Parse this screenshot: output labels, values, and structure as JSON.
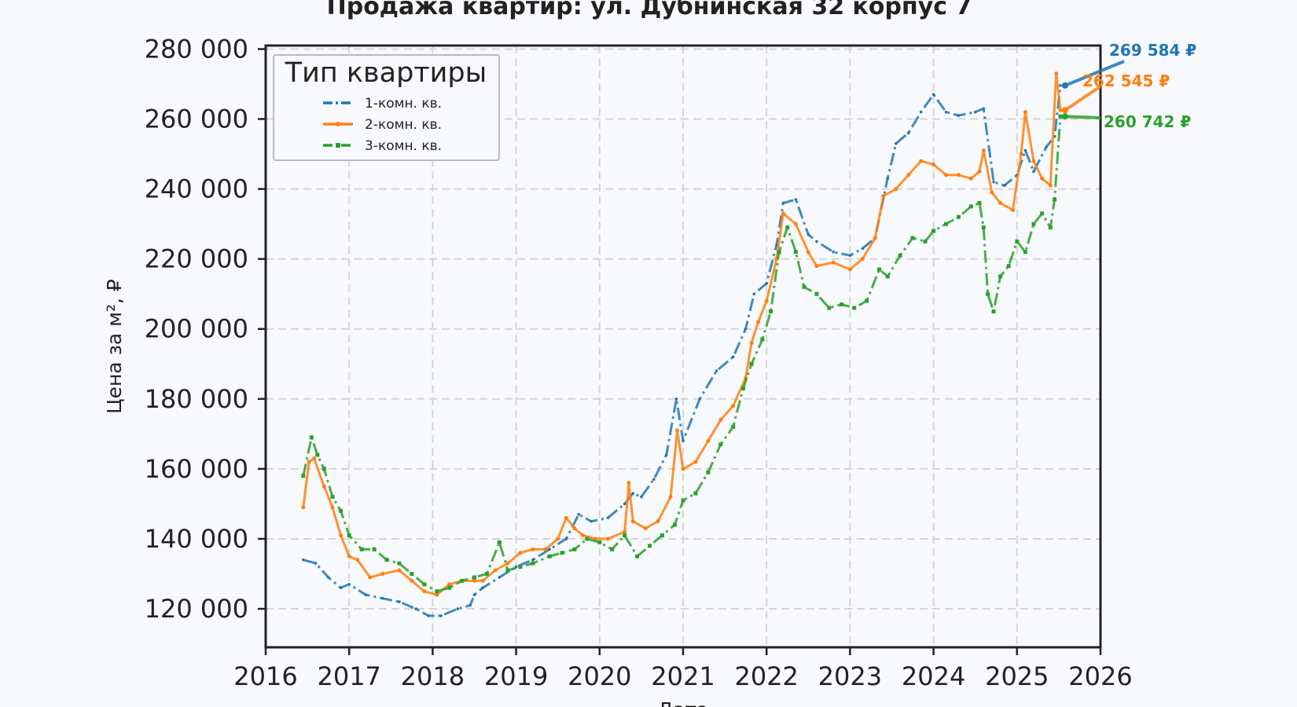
{
  "chart_data": {
    "type": "line",
    "title": "Продажа квартир: ул. Дубнинская 32 корпус 7",
    "xlabel": "Дата",
    "ylabel": "Цена за м², ₽",
    "xlim": [
      2016,
      2026
    ],
    "ylim": [
      109000,
      281000
    ],
    "x_ticks": [
      2016,
      2017,
      2018,
      2019,
      2020,
      2021,
      2022,
      2023,
      2024,
      2025,
      2026
    ],
    "y_ticks": [
      120000,
      140000,
      160000,
      180000,
      200000,
      220000,
      240000,
      260000,
      280000
    ],
    "y_tick_labels": [
      "120 000",
      "140 000",
      "160 000",
      "180 000",
      "200 000",
      "220 000",
      "240 000",
      "260 000",
      "280 000"
    ],
    "grid": true,
    "legend": {
      "title": "Тип квартиры",
      "position": "top-left"
    },
    "series": [
      {
        "name": "1-комн. кв.",
        "color": "#1f77b4",
        "style": "dashdot",
        "end_label": "269 584 ₽",
        "points": [
          [
            2016.45,
            134000
          ],
          [
            2016.6,
            133000
          ],
          [
            2016.75,
            129000
          ],
          [
            2016.9,
            126000
          ],
          [
            2017.0,
            127000
          ],
          [
            2017.2,
            124000
          ],
          [
            2017.4,
            123000
          ],
          [
            2017.6,
            122000
          ],
          [
            2017.8,
            120000
          ],
          [
            2017.95,
            118000
          ],
          [
            2018.1,
            118000
          ],
          [
            2018.3,
            120000
          ],
          [
            2018.45,
            121000
          ],
          [
            2018.5,
            124000
          ],
          [
            2018.6,
            126000
          ],
          [
            2018.8,
            129000
          ],
          [
            2019.0,
            132000
          ],
          [
            2019.2,
            134000
          ],
          [
            2019.4,
            137000
          ],
          [
            2019.6,
            140000
          ],
          [
            2019.75,
            147000
          ],
          [
            2019.9,
            145000
          ],
          [
            2020.1,
            146000
          ],
          [
            2020.3,
            150000
          ],
          [
            2020.4,
            153000
          ],
          [
            2020.5,
            152000
          ],
          [
            2020.65,
            157000
          ],
          [
            2020.8,
            164000
          ],
          [
            2020.92,
            180000
          ],
          [
            2021.0,
            168000
          ],
          [
            2021.2,
            180000
          ],
          [
            2021.4,
            188000
          ],
          [
            2021.6,
            192000
          ],
          [
            2021.75,
            200000
          ],
          [
            2021.85,
            210000
          ],
          [
            2022.0,
            213000
          ],
          [
            2022.12,
            224000
          ],
          [
            2022.2,
            236000
          ],
          [
            2022.35,
            237000
          ],
          [
            2022.5,
            227000
          ],
          [
            2022.6,
            225000
          ],
          [
            2022.8,
            222000
          ],
          [
            2023.0,
            221000
          ],
          [
            2023.15,
            223000
          ],
          [
            2023.3,
            226000
          ],
          [
            2023.45,
            243000
          ],
          [
            2023.55,
            253000
          ],
          [
            2023.7,
            256000
          ],
          [
            2023.85,
            262000
          ],
          [
            2024.0,
            267000
          ],
          [
            2024.15,
            262000
          ],
          [
            2024.3,
            261000
          ],
          [
            2024.5,
            262000
          ],
          [
            2024.6,
            263000
          ],
          [
            2024.72,
            242000
          ],
          [
            2024.85,
            241000
          ],
          [
            2025.0,
            244000
          ],
          [
            2025.1,
            251000
          ],
          [
            2025.2,
            245000
          ],
          [
            2025.35,
            252000
          ],
          [
            2025.45,
            255000
          ],
          [
            2025.52,
            269584
          ]
        ]
      },
      {
        "name": "2-комн. кв.",
        "color": "#ff7f0e",
        "style": "solid-dot",
        "end_label": "262 545 ₽",
        "points": [
          [
            2016.45,
            149000
          ],
          [
            2016.52,
            162000
          ],
          [
            2016.58,
            163000
          ],
          [
            2016.7,
            155000
          ],
          [
            2016.8,
            149000
          ],
          [
            2016.9,
            141000
          ],
          [
            2017.0,
            135000
          ],
          [
            2017.1,
            134000
          ],
          [
            2017.25,
            129000
          ],
          [
            2017.4,
            130000
          ],
          [
            2017.6,
            131000
          ],
          [
            2017.75,
            128000
          ],
          [
            2017.9,
            125000
          ],
          [
            2018.05,
            124000
          ],
          [
            2018.2,
            127000
          ],
          [
            2018.35,
            128000
          ],
          [
            2018.5,
            128000
          ],
          [
            2018.6,
            128000
          ],
          [
            2018.75,
            131000
          ],
          [
            2018.9,
            133000
          ],
          [
            2019.05,
            136000
          ],
          [
            2019.2,
            137000
          ],
          [
            2019.35,
            137000
          ],
          [
            2019.5,
            140000
          ],
          [
            2019.6,
            146000
          ],
          [
            2019.7,
            143000
          ],
          [
            2019.8,
            141000
          ],
          [
            2019.95,
            140000
          ],
          [
            2020.1,
            140000
          ],
          [
            2020.3,
            142000
          ],
          [
            2020.35,
            156000
          ],
          [
            2020.4,
            145000
          ],
          [
            2020.55,
            143000
          ],
          [
            2020.7,
            145000
          ],
          [
            2020.85,
            152000
          ],
          [
            2020.93,
            171000
          ],
          [
            2021.0,
            160000
          ],
          [
            2021.15,
            162000
          ],
          [
            2021.3,
            168000
          ],
          [
            2021.45,
            174000
          ],
          [
            2021.6,
            178000
          ],
          [
            2021.75,
            186000
          ],
          [
            2021.82,
            196000
          ],
          [
            2021.9,
            202000
          ],
          [
            2022.0,
            208000
          ],
          [
            2022.12,
            220000
          ],
          [
            2022.2,
            233000
          ],
          [
            2022.35,
            230000
          ],
          [
            2022.5,
            222000
          ],
          [
            2022.6,
            218000
          ],
          [
            2022.8,
            219000
          ],
          [
            2023.0,
            217000
          ],
          [
            2023.15,
            220000
          ],
          [
            2023.3,
            226000
          ],
          [
            2023.4,
            238000
          ],
          [
            2023.55,
            240000
          ],
          [
            2023.7,
            244000
          ],
          [
            2023.85,
            248000
          ],
          [
            2024.0,
            247000
          ],
          [
            2024.15,
            244000
          ],
          [
            2024.3,
            244000
          ],
          [
            2024.45,
            243000
          ],
          [
            2024.55,
            245000
          ],
          [
            2024.6,
            251000
          ],
          [
            2024.7,
            239000
          ],
          [
            2024.8,
            236000
          ],
          [
            2024.95,
            234000
          ],
          [
            2025.05,
            250000
          ],
          [
            2025.1,
            262000
          ],
          [
            2025.2,
            248000
          ],
          [
            2025.3,
            243000
          ],
          [
            2025.4,
            241000
          ],
          [
            2025.47,
            273000
          ],
          [
            2025.52,
            262545
          ]
        ]
      },
      {
        "name": "3-комн. кв.",
        "color": "#2ca02c",
        "style": "dashdot-square",
        "end_label": "260 742 ₽",
        "points": [
          [
            2016.45,
            158000
          ],
          [
            2016.55,
            169000
          ],
          [
            2016.62,
            164000
          ],
          [
            2016.7,
            160000
          ],
          [
            2016.8,
            152000
          ],
          [
            2016.9,
            148000
          ],
          [
            2017.0,
            141000
          ],
          [
            2017.15,
            137000
          ],
          [
            2017.3,
            137000
          ],
          [
            2017.45,
            134000
          ],
          [
            2017.6,
            133000
          ],
          [
            2017.75,
            130000
          ],
          [
            2017.9,
            127000
          ],
          [
            2018.05,
            125000
          ],
          [
            2018.2,
            126000
          ],
          [
            2018.35,
            128000
          ],
          [
            2018.5,
            129000
          ],
          [
            2018.65,
            130000
          ],
          [
            2018.8,
            139000
          ],
          [
            2018.9,
            131000
          ],
          [
            2019.05,
            132000
          ],
          [
            2019.2,
            133000
          ],
          [
            2019.4,
            135000
          ],
          [
            2019.55,
            136000
          ],
          [
            2019.7,
            137000
          ],
          [
            2019.85,
            140000
          ],
          [
            2020.0,
            139000
          ],
          [
            2020.15,
            137000
          ],
          [
            2020.3,
            141000
          ],
          [
            2020.45,
            135000
          ],
          [
            2020.6,
            138000
          ],
          [
            2020.75,
            141000
          ],
          [
            2020.9,
            144000
          ],
          [
            2021.0,
            151000
          ],
          [
            2021.15,
            153000
          ],
          [
            2021.3,
            159000
          ],
          [
            2021.45,
            167000
          ],
          [
            2021.6,
            172000
          ],
          [
            2021.72,
            183000
          ],
          [
            2021.82,
            190000
          ],
          [
            2021.95,
            197000
          ],
          [
            2022.05,
            205000
          ],
          [
            2022.15,
            222000
          ],
          [
            2022.25,
            229000
          ],
          [
            2022.35,
            222000
          ],
          [
            2022.45,
            212000
          ],
          [
            2022.6,
            210000
          ],
          [
            2022.75,
            206000
          ],
          [
            2022.9,
            207000
          ],
          [
            2023.05,
            206000
          ],
          [
            2023.2,
            208000
          ],
          [
            2023.35,
            217000
          ],
          [
            2023.45,
            215000
          ],
          [
            2023.6,
            221000
          ],
          [
            2023.75,
            226000
          ],
          [
            2023.9,
            225000
          ],
          [
            2024.0,
            228000
          ],
          [
            2024.15,
            230000
          ],
          [
            2024.3,
            232000
          ],
          [
            2024.45,
            235000
          ],
          [
            2024.55,
            236000
          ],
          [
            2024.6,
            229000
          ],
          [
            2024.65,
            210000
          ],
          [
            2024.72,
            205000
          ],
          [
            2024.8,
            215000
          ],
          [
            2024.9,
            218000
          ],
          [
            2025.0,
            225000
          ],
          [
            2025.1,
            222000
          ],
          [
            2025.2,
            230000
          ],
          [
            2025.3,
            233000
          ],
          [
            2025.4,
            229000
          ],
          [
            2025.45,
            237000
          ],
          [
            2025.52,
            260742
          ]
        ]
      }
    ]
  }
}
